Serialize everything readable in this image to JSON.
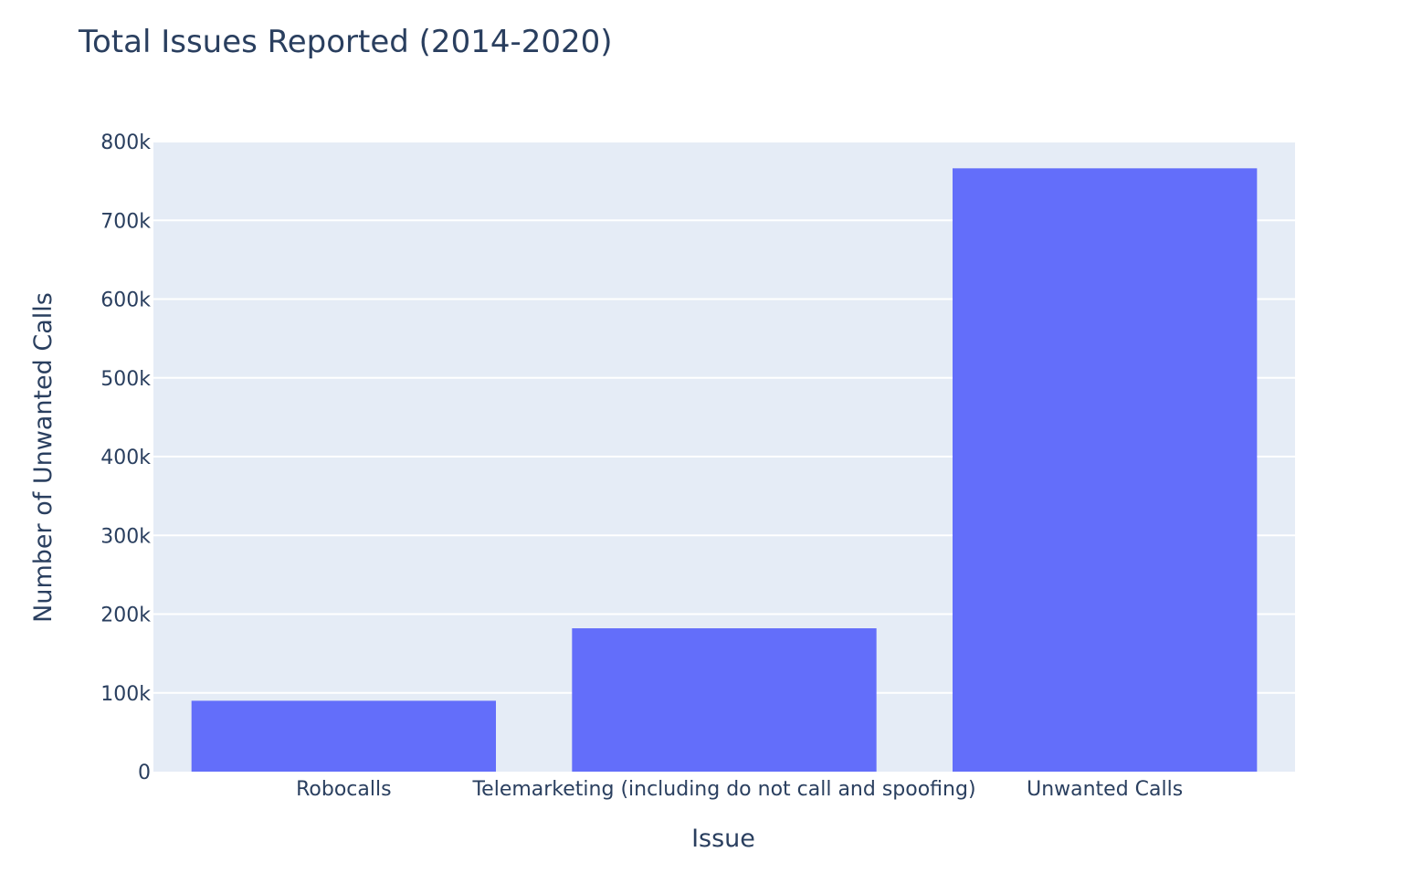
{
  "chart_data": {
    "type": "bar",
    "title": "Total Issues Reported (2014-2020)",
    "xlabel": "Issue",
    "ylabel": "Number of Unwanted Calls",
    "categories": [
      "Robocalls",
      "Telemarketing (including do not call and spoofing)",
      "Unwanted Calls"
    ],
    "values": [
      90000,
      182000,
      766000
    ],
    "ylim": [
      0,
      800000
    ],
    "yticks": [
      0,
      100000,
      200000,
      300000,
      400000,
      500000,
      600000,
      700000,
      800000
    ],
    "ytick_labels": [
      "0",
      "100k",
      "200k",
      "300k",
      "400k",
      "500k",
      "600k",
      "700k",
      "800k"
    ],
    "grid": true,
    "legend": "none",
    "colors": {
      "bar": "#636efa",
      "plot_background": "#e5ecf6",
      "grid": "#ffffff",
      "text": "#2a3f5f"
    }
  }
}
